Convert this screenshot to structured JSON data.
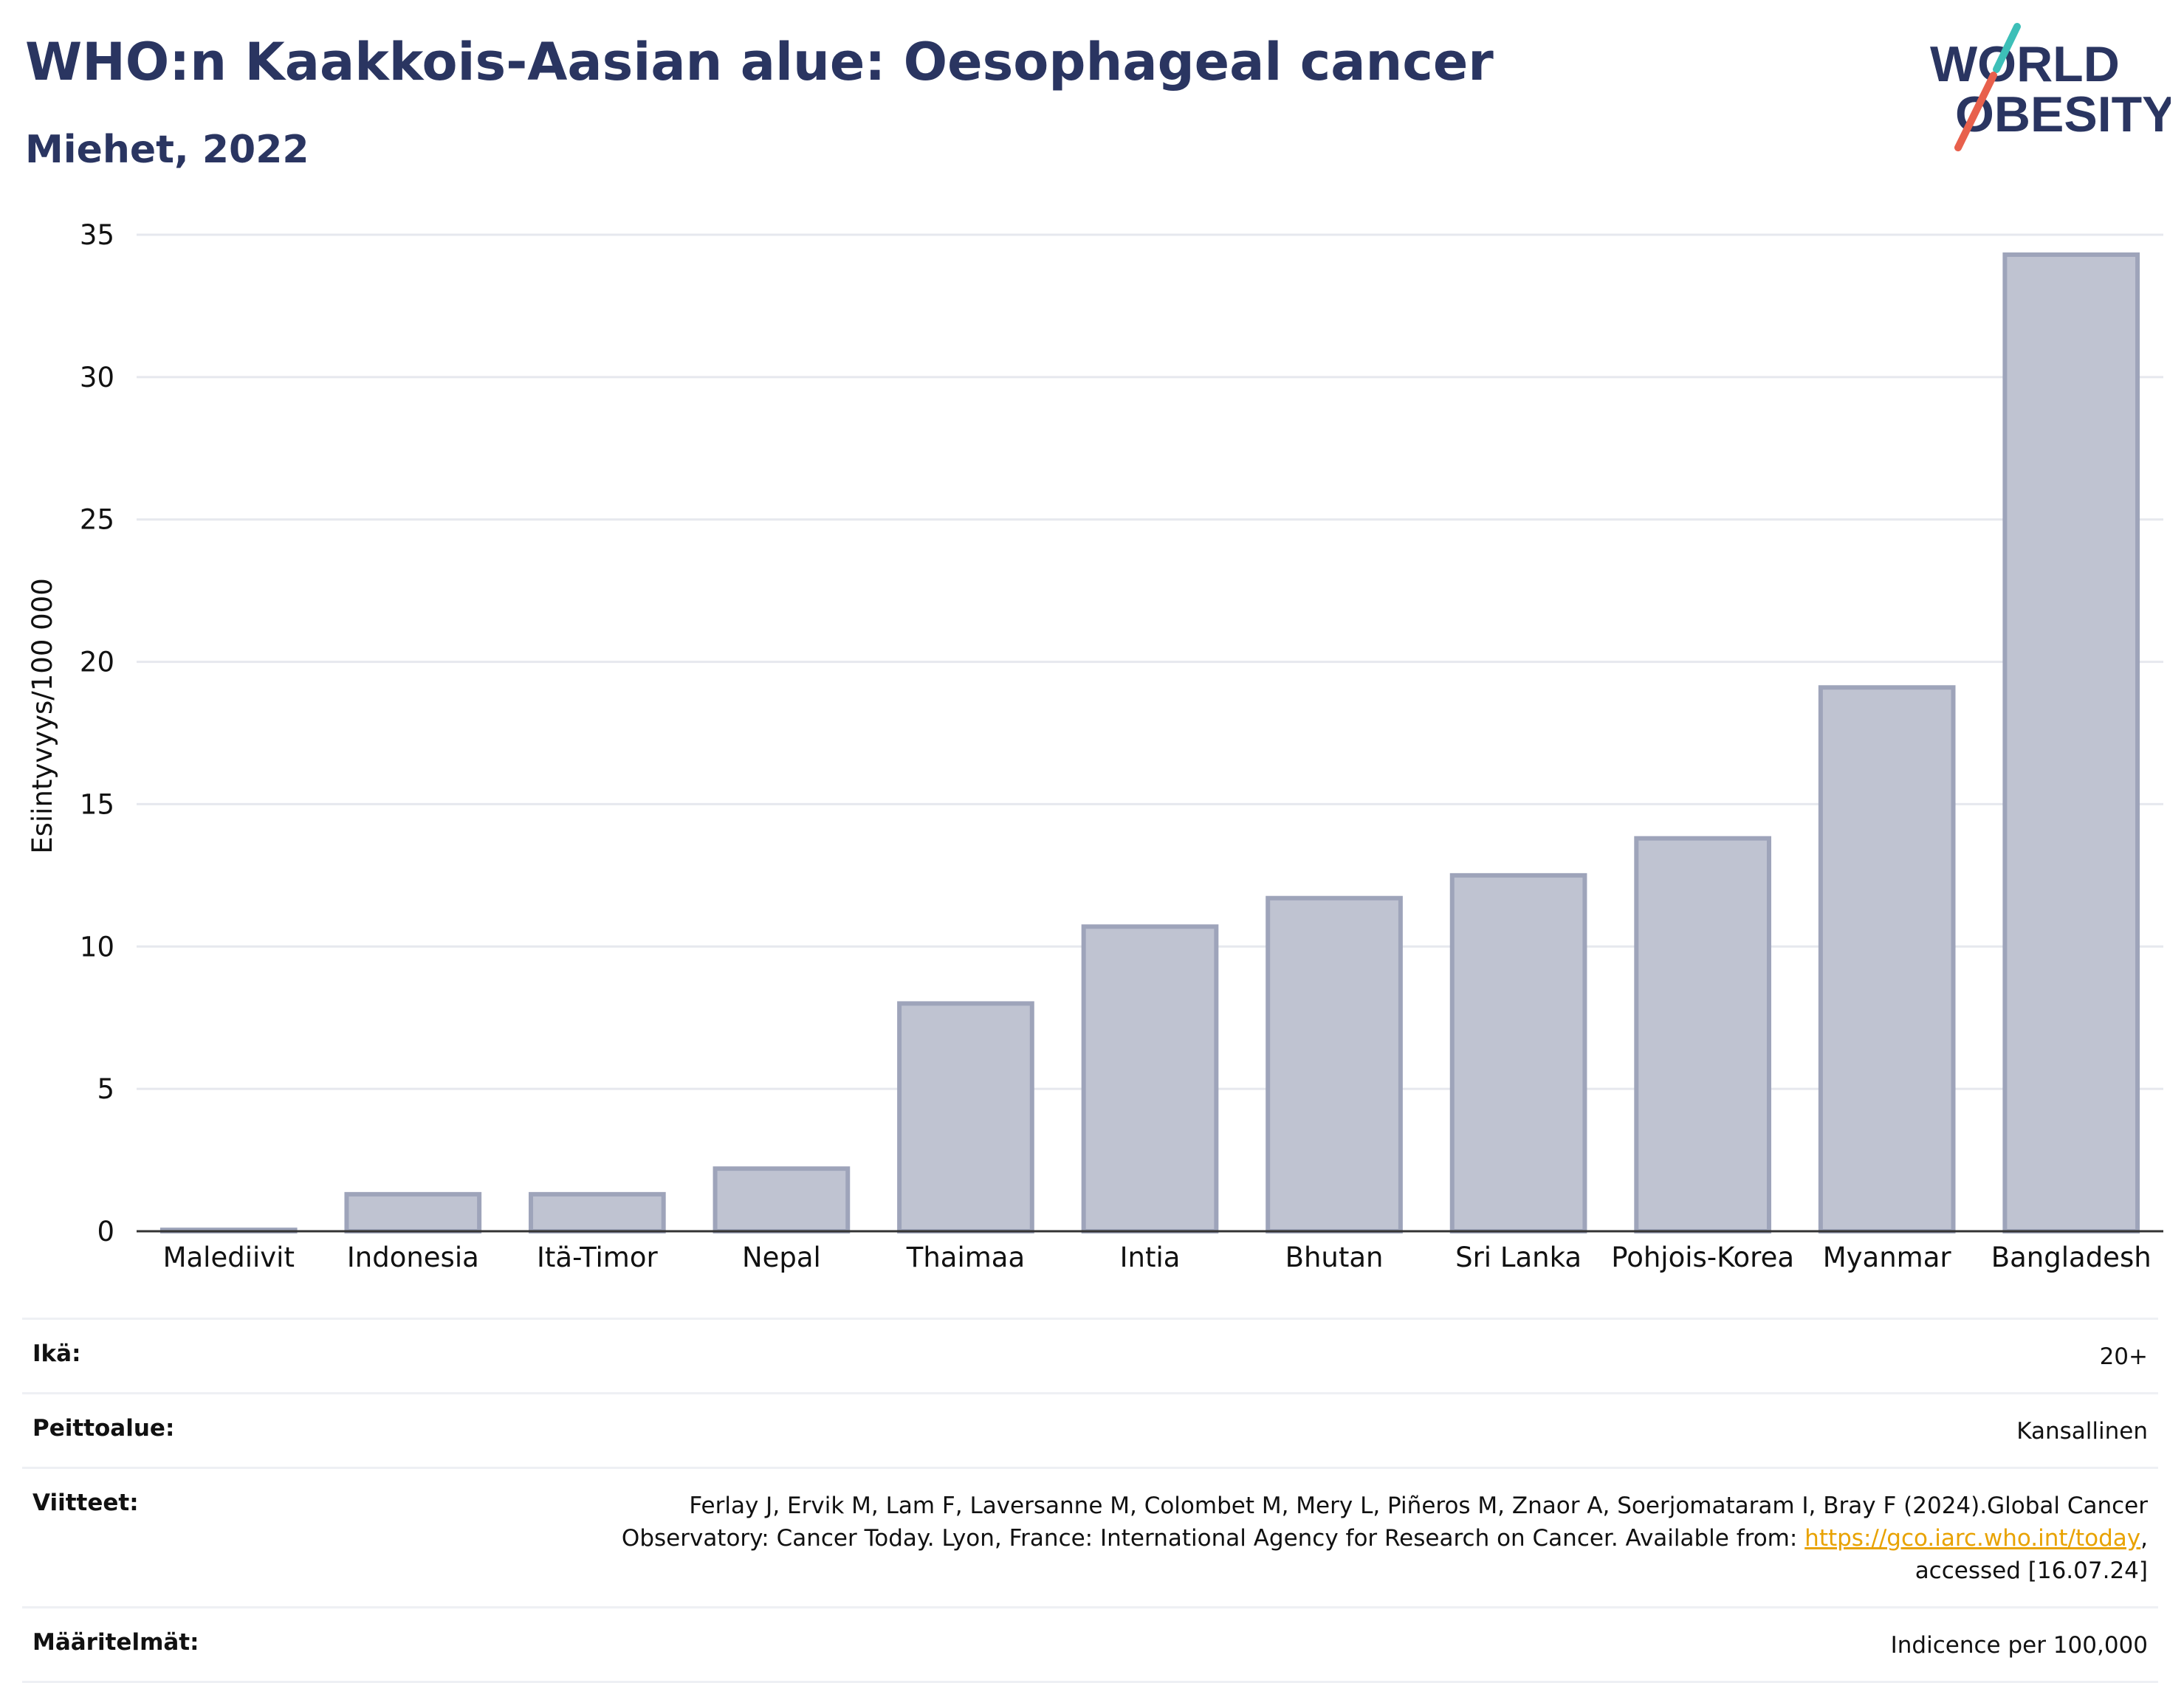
{
  "header": {
    "title": "WHO:n Kaakkois-Aasian alue: Oesophageal cancer",
    "subtitle": "Miehet, 2022"
  },
  "logo": {
    "line1": "WORLD",
    "line2": "OBESITY",
    "colors": {
      "text": "#2a3561",
      "slash_top": "#3dbfb8",
      "slash_bottom": "#e8604c"
    }
  },
  "colors": {
    "bar_fill": "#bfc3d1",
    "bar_stroke": "#9ea4ba",
    "grid": "#e6e8ee",
    "axis": "#333333",
    "text": "#2a3561"
  },
  "chart_data": {
    "type": "bar",
    "title": "",
    "xlabel": "",
    "ylabel": "Esiintyvyys/100 000",
    "ylim": [
      0,
      35
    ],
    "yticks": [
      0,
      5,
      10,
      15,
      20,
      25,
      30,
      35
    ],
    "grid": true,
    "categories": [
      "Malediivit",
      "Indonesia",
      "Itä-Timor",
      "Nepal",
      "Thaimaa",
      "Intia",
      "Bhutan",
      "Sri Lanka",
      "Pohjois-Korea",
      "Myanmar",
      "Bangladesh"
    ],
    "values": [
      0.05,
      1.3,
      1.3,
      2.2,
      8.0,
      10.7,
      11.7,
      12.5,
      13.8,
      19.1,
      34.3
    ]
  },
  "info": {
    "age": {
      "label": "Ikä:",
      "value": "20+"
    },
    "coverage": {
      "label": "Peittoalue:",
      "value": "Kansallinen"
    },
    "references": {
      "label": "Viitteet:",
      "text_before": "Ferlay J, Ervik M, Lam F, Laversanne M, Colombet M, Mery L, Piñeros M, Znaor A, Soerjomataram I, Bray F (2024).Global Cancer Observatory: Cancer Today. Lyon, France: International Agency for Research on Cancer. Available from: ",
      "link": "https://gco.iarc.who.int/today",
      "text_after": ", accessed [16.07.24]"
    },
    "definitions": {
      "label": "Määritelmät:",
      "value": "Indicence per 100,000"
    }
  }
}
